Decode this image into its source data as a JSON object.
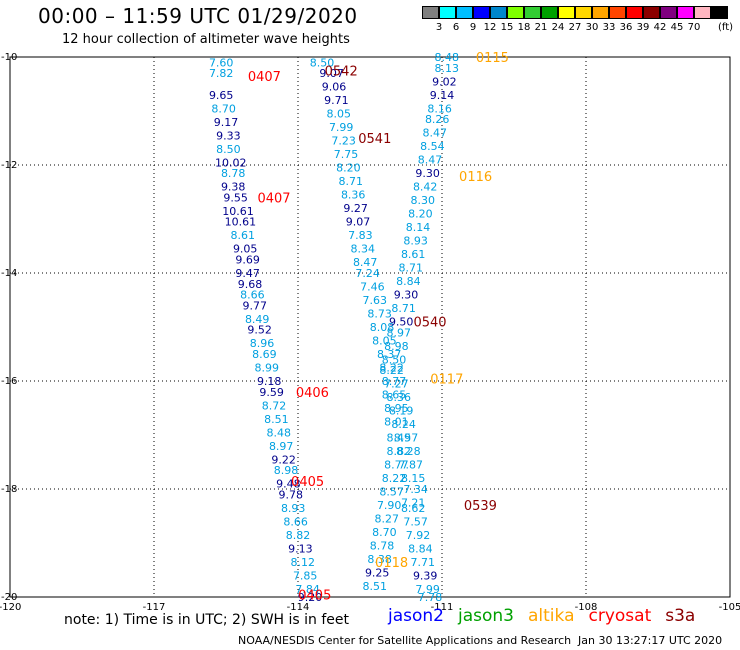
{
  "title": "00:00 – 11:59 UTC 01/29/2020",
  "subtitle": "12 hour collection of altimeter wave heights",
  "colorbar": {
    "colors": [
      "#7f7f7f",
      "#00ffff",
      "#00bfff",
      "#0000ff",
      "#0087cd",
      "#7fff00",
      "#32cd32",
      "#00a000",
      "#ffff00",
      "#ffd700",
      "#ffa500",
      "#ff4500",
      "#ff0000",
      "#8b0000",
      "#800080",
      "#ff00ff",
      "#ffb6c1",
      "#000000"
    ],
    "labels": [
      "3",
      "6",
      "9",
      "12",
      "15",
      "18",
      "21",
      "24",
      "27",
      "30",
      "33",
      "36",
      "39",
      "42",
      "45",
      "70"
    ],
    "unit": "(ft)"
  },
  "note": "note: 1) Time is in UTC; 2) SWH is in feet",
  "satellites": [
    {
      "name": "jason2",
      "color": "#0000ff"
    },
    {
      "name": "jason3",
      "color": "#00a000"
    },
    {
      "name": "altika",
      "color": "#ffa500"
    },
    {
      "name": "cryosat",
      "color": "#ff0000"
    },
    {
      "name": "s3a",
      "color": "#8b0000"
    }
  ],
  "credit": "NOAA/NESDIS Center for Satellite Applications and Research",
  "timestamp": "Jan 30 13:27:17 UTC 2020",
  "chart_data": {
    "type": "scatter",
    "xlim": [
      -120,
      -105
    ],
    "ylim": [
      -20,
      -10
    ],
    "xticks": [
      -120,
      -117,
      -114,
      -111,
      -108,
      -105
    ],
    "yticks": [
      -10,
      -12,
      -14,
      -16,
      -18,
      -20
    ],
    "xtick_labels": [
      "-120",
      "-117",
      "-114",
      "-111",
      "-108",
      "-105"
    ],
    "ytick_labels": [
      "-10",
      "-12",
      "-14",
      "-16",
      "-18",
      "-20"
    ],
    "grid": true,
    "point_colors": {
      "navy": "#00008b",
      "cyan": "#00a0e0"
    },
    "swh_values": [
      {
        "x": -115.6,
        "y": -10.1,
        "v": "7.60",
        "c": "cyan"
      },
      {
        "x": -115.6,
        "y": -10.3,
        "v": "7.82",
        "c": "cyan"
      },
      {
        "x": -115.6,
        "y": -10.7,
        "v": "9.65",
        "c": "navy"
      },
      {
        "x": -115.55,
        "y": -10.95,
        "v": "8.70",
        "c": "cyan"
      },
      {
        "x": -115.5,
        "y": -11.2,
        "v": "9.17",
        "c": "navy"
      },
      {
        "x": -115.45,
        "y": -11.45,
        "v": "9.33",
        "c": "navy"
      },
      {
        "x": -115.45,
        "y": -11.7,
        "v": "8.50",
        "c": "cyan"
      },
      {
        "x": -115.4,
        "y": -11.95,
        "v": "10.02",
        "c": "navy"
      },
      {
        "x": -115.35,
        "y": -12.15,
        "v": "8.78",
        "c": "cyan"
      },
      {
        "x": -115.35,
        "y": -12.4,
        "v": "9.38",
        "c": "navy"
      },
      {
        "x": -115.3,
        "y": -12.6,
        "v": "9.55",
        "c": "navy"
      },
      {
        "x": -115.25,
        "y": -12.85,
        "v": "10.61",
        "c": "navy"
      },
      {
        "x": -115.2,
        "y": -13.05,
        "v": "10.61",
        "c": "navy"
      },
      {
        "x": -115.15,
        "y": -13.3,
        "v": "8.61",
        "c": "cyan"
      },
      {
        "x": -115.1,
        "y": -13.55,
        "v": "9.05",
        "c": "navy"
      },
      {
        "x": -115.05,
        "y": -13.75,
        "v": "9.69",
        "c": "navy"
      },
      {
        "x": -115.05,
        "y": -14.0,
        "v": "9.47",
        "c": "navy"
      },
      {
        "x": -115.0,
        "y": -14.2,
        "v": "9.68",
        "c": "navy"
      },
      {
        "x": -114.95,
        "y": -14.4,
        "v": "8.66",
        "c": "cyan"
      },
      {
        "x": -114.9,
        "y": -14.6,
        "v": "9.77",
        "c": "navy"
      },
      {
        "x": -114.85,
        "y": -14.85,
        "v": "8.49",
        "c": "cyan"
      },
      {
        "x": -114.8,
        "y": -15.05,
        "v": "9.52",
        "c": "navy"
      },
      {
        "x": -114.75,
        "y": -15.3,
        "v": "8.96",
        "c": "cyan"
      },
      {
        "x": -114.7,
        "y": -15.5,
        "v": "8.69",
        "c": "cyan"
      },
      {
        "x": -114.65,
        "y": -15.75,
        "v": "8.99",
        "c": "cyan"
      },
      {
        "x": -114.6,
        "y": -16.0,
        "v": "9.18",
        "c": "navy"
      },
      {
        "x": -114.55,
        "y": -16.2,
        "v": "9.59",
        "c": "navy"
      },
      {
        "x": -114.5,
        "y": -16.45,
        "v": "8.72",
        "c": "cyan"
      },
      {
        "x": -114.45,
        "y": -16.7,
        "v": "8.51",
        "c": "cyan"
      },
      {
        "x": -114.4,
        "y": -16.95,
        "v": "8.48",
        "c": "cyan"
      },
      {
        "x": -114.35,
        "y": -17.2,
        "v": "8.97",
        "c": "cyan"
      },
      {
        "x": -114.3,
        "y": -17.45,
        "v": "9.22",
        "c": "navy"
      },
      {
        "x": -114.25,
        "y": -17.65,
        "v": "8.98",
        "c": "cyan"
      },
      {
        "x": -114.2,
        "y": -17.9,
        "v": "9.48",
        "c": "navy"
      },
      {
        "x": -114.15,
        "y": -18.1,
        "v": "9.78",
        "c": "navy"
      },
      {
        "x": -114.1,
        "y": -18.35,
        "v": "8.93",
        "c": "cyan"
      },
      {
        "x": -114.05,
        "y": -18.6,
        "v": "8.66",
        "c": "cyan"
      },
      {
        "x": -114.0,
        "y": -18.85,
        "v": "8.82",
        "c": "cyan"
      },
      {
        "x": -113.95,
        "y": -19.1,
        "v": "9.13",
        "c": "navy"
      },
      {
        "x": -113.9,
        "y": -19.35,
        "v": "8.12",
        "c": "cyan"
      },
      {
        "x": -113.85,
        "y": -19.6,
        "v": "7.85",
        "c": "cyan"
      },
      {
        "x": -113.8,
        "y": -19.85,
        "v": "7.84",
        "c": "cyan"
      },
      {
        "x": -113.75,
        "y": -20.0,
        "v": "9.20",
        "c": "navy"
      },
      {
        "x": -113.5,
        "y": -10.1,
        "v": "8.50",
        "c": "cyan"
      },
      {
        "x": -113.3,
        "y": -10.3,
        "v": "9.07",
        "c": "navy"
      },
      {
        "x": -113.25,
        "y": -10.55,
        "v": "9.06",
        "c": "navy"
      },
      {
        "x": -113.2,
        "y": -10.8,
        "v": "9.71",
        "c": "navy"
      },
      {
        "x": -113.15,
        "y": -11.05,
        "v": "8.05",
        "c": "cyan"
      },
      {
        "x": -113.1,
        "y": -11.3,
        "v": "7.99",
        "c": "cyan"
      },
      {
        "x": -113.05,
        "y": -11.55,
        "v": "7.23",
        "c": "cyan"
      },
      {
        "x": -113.0,
        "y": -11.8,
        "v": "7.75",
        "c": "cyan"
      },
      {
        "x": -112.95,
        "y": -12.05,
        "v": "8.20",
        "c": "cyan"
      },
      {
        "x": -112.9,
        "y": -12.3,
        "v": "8.71",
        "c": "cyan"
      },
      {
        "x": -112.85,
        "y": -12.55,
        "v": "8.36",
        "c": "cyan"
      },
      {
        "x": -112.8,
        "y": -12.8,
        "v": "9.27",
        "c": "navy"
      },
      {
        "x": -112.75,
        "y": -13.05,
        "v": "9.07",
        "c": "navy"
      },
      {
        "x": -112.7,
        "y": -13.3,
        "v": "7.83",
        "c": "cyan"
      },
      {
        "x": -112.65,
        "y": -13.55,
        "v": "8.34",
        "c": "cyan"
      },
      {
        "x": -112.6,
        "y": -13.8,
        "v": "8.47",
        "c": "cyan"
      },
      {
        "x": -112.55,
        "y": -14.0,
        "v": "7.24",
        "c": "cyan"
      },
      {
        "x": -112.45,
        "y": -14.25,
        "v": "7.46",
        "c": "cyan"
      },
      {
        "x": -112.4,
        "y": -14.5,
        "v": "7.63",
        "c": "cyan"
      },
      {
        "x": -112.3,
        "y": -14.75,
        "v": "8.73",
        "c": "cyan"
      },
      {
        "x": -112.25,
        "y": -15.0,
        "v": "8.08",
        "c": "cyan"
      },
      {
        "x": -112.2,
        "y": -15.25,
        "v": "8.05",
        "c": "cyan"
      },
      {
        "x": -112.1,
        "y": -15.5,
        "v": "8.37",
        "c": "cyan"
      },
      {
        "x": -112.05,
        "y": -15.75,
        "v": "8.22",
        "c": "cyan"
      },
      {
        "x": -112.0,
        "y": -16.0,
        "v": "8.77",
        "c": "cyan"
      },
      {
        "x": -112.0,
        "y": -16.25,
        "v": "8.65",
        "c": "cyan"
      },
      {
        "x": -111.95,
        "y": -16.5,
        "v": "8.95",
        "c": "cyan"
      },
      {
        "x": -111.95,
        "y": -16.75,
        "v": "8.01",
        "c": "cyan"
      },
      {
        "x": -111.9,
        "y": -17.05,
        "v": "8.49",
        "c": "cyan"
      },
      {
        "x": -111.9,
        "y": -17.3,
        "v": "8.82",
        "c": "cyan"
      },
      {
        "x": -111.95,
        "y": -17.55,
        "v": "8.77",
        "c": "cyan"
      },
      {
        "x": -112.0,
        "y": -17.8,
        "v": "8.22",
        "c": "cyan"
      },
      {
        "x": -112.05,
        "y": -18.05,
        "v": "8.57",
        "c": "cyan"
      },
      {
        "x": -112.1,
        "y": -18.3,
        "v": "7.90",
        "c": "cyan"
      },
      {
        "x": -112.15,
        "y": -18.55,
        "v": "8.27",
        "c": "cyan"
      },
      {
        "x": -112.2,
        "y": -18.8,
        "v": "8.70",
        "c": "cyan"
      },
      {
        "x": -112.25,
        "y": -19.05,
        "v": "8.78",
        "c": "cyan"
      },
      {
        "x": -112.3,
        "y": -19.3,
        "v": "8.38",
        "c": "cyan"
      },
      {
        "x": -112.35,
        "y": -19.55,
        "v": "9.25",
        "c": "navy"
      },
      {
        "x": -112.4,
        "y": -19.8,
        "v": "8.51",
        "c": "cyan"
      },
      {
        "x": -110.9,
        "y": -10.0,
        "v": "8.48",
        "c": "cyan"
      },
      {
        "x": -110.9,
        "y": -10.2,
        "v": "8.13",
        "c": "cyan"
      },
      {
        "x": -110.95,
        "y": -10.45,
        "v": "9.02",
        "c": "navy"
      },
      {
        "x": -111.0,
        "y": -10.7,
        "v": "9.14",
        "c": "navy"
      },
      {
        "x": -111.05,
        "y": -10.95,
        "v": "8.16",
        "c": "cyan"
      },
      {
        "x": -111.1,
        "y": -11.15,
        "v": "8.26",
        "c": "cyan"
      },
      {
        "x": -111.15,
        "y": -11.4,
        "v": "8.47",
        "c": "cyan"
      },
      {
        "x": -111.2,
        "y": -11.65,
        "v": "8.54",
        "c": "cyan"
      },
      {
        "x": -111.25,
        "y": -11.9,
        "v": "8.47",
        "c": "cyan"
      },
      {
        "x": -111.3,
        "y": -12.15,
        "v": "9.30",
        "c": "navy"
      },
      {
        "x": -111.35,
        "y": -12.4,
        "v": "8.42",
        "c": "cyan"
      },
      {
        "x": -111.4,
        "y": -12.65,
        "v": "8.30",
        "c": "cyan"
      },
      {
        "x": -111.45,
        "y": -12.9,
        "v": "8.20",
        "c": "cyan"
      },
      {
        "x": -111.5,
        "y": -13.15,
        "v": "8.14",
        "c": "cyan"
      },
      {
        "x": -111.55,
        "y": -13.4,
        "v": "8.93",
        "c": "cyan"
      },
      {
        "x": -111.6,
        "y": -13.65,
        "v": "8.61",
        "c": "cyan"
      },
      {
        "x": -111.65,
        "y": -13.9,
        "v": "8.71",
        "c": "cyan"
      },
      {
        "x": -111.7,
        "y": -14.15,
        "v": "8.84",
        "c": "cyan"
      },
      {
        "x": -111.75,
        "y": -14.4,
        "v": "9.30",
        "c": "navy"
      },
      {
        "x": -111.8,
        "y": -14.65,
        "v": "8.71",
        "c": "cyan"
      },
      {
        "x": -111.85,
        "y": -14.9,
        "v": "9.50",
        "c": "navy"
      },
      {
        "x": -111.9,
        "y": -15.1,
        "v": "8.97",
        "c": "cyan"
      },
      {
        "x": -111.95,
        "y": -15.35,
        "v": "8.98",
        "c": "cyan"
      },
      {
        "x": -112.0,
        "y": -15.6,
        "v": "8.50",
        "c": "cyan"
      },
      {
        "x": -112.05,
        "y": -15.8,
        "v": "8.22",
        "c": "cyan"
      },
      {
        "x": -111.95,
        "y": -16.05,
        "v": "7.27",
        "c": "cyan"
      },
      {
        "x": -111.9,
        "y": -16.3,
        "v": "8.36",
        "c": "cyan"
      },
      {
        "x": -111.85,
        "y": -16.55,
        "v": "8.19",
        "c": "cyan"
      },
      {
        "x": -111.8,
        "y": -16.8,
        "v": "8.24",
        "c": "cyan"
      },
      {
        "x": -111.75,
        "y": -17.05,
        "v": "8.57",
        "c": "cyan"
      },
      {
        "x": -111.7,
        "y": -17.3,
        "v": "8.28",
        "c": "cyan"
      },
      {
        "x": -111.65,
        "y": -17.55,
        "v": "7.87",
        "c": "cyan"
      },
      {
        "x": -111.6,
        "y": -17.8,
        "v": "8.15",
        "c": "cyan"
      },
      {
        "x": -111.55,
        "y": -18.0,
        "v": "7.34",
        "c": "cyan"
      },
      {
        "x": -111.6,
        "y": -18.25,
        "v": "7.21",
        "c": "cyan"
      },
      {
        "x": -111.6,
        "y": -18.35,
        "v": "8.62",
        "c": "cyan"
      },
      {
        "x": -111.55,
        "y": -18.6,
        "v": "7.57",
        "c": "cyan"
      },
      {
        "x": -111.5,
        "y": -18.85,
        "v": "7.92",
        "c": "cyan"
      },
      {
        "x": -111.45,
        "y": -19.1,
        "v": "8.84",
        "c": "cyan"
      },
      {
        "x": -111.4,
        "y": -19.35,
        "v": "7.71",
        "c": "cyan"
      },
      {
        "x": -111.35,
        "y": -19.6,
        "v": "9.39",
        "c": "navy"
      },
      {
        "x": -111.3,
        "y": -19.85,
        "v": "7.99",
        "c": "cyan"
      },
      {
        "x": -111.25,
        "y": -20.0,
        "v": "7.78",
        "c": "cyan"
      }
    ],
    "pass_labels": [
      {
        "x": -114.7,
        "y": -10.35,
        "v": "0407",
        "c": "#ff0000"
      },
      {
        "x": -113.1,
        "y": -10.25,
        "v": "0542",
        "c": "#8b0000"
      },
      {
        "x": -112.4,
        "y": -11.5,
        "v": "0541",
        "c": "#8b0000"
      },
      {
        "x": -114.5,
        "y": -12.6,
        "v": "0407",
        "c": "#ff0000"
      },
      {
        "x": -110.9,
        "y": -15.95,
        "v": "0117",
        "c": "#ffa500"
      },
      {
        "x": -111.25,
        "y": -14.9,
        "v": "0540",
        "c": "#8b0000"
      },
      {
        "x": -113.7,
        "y": -16.2,
        "v": "0406",
        "c": "#ff0000"
      },
      {
        "x": -113.8,
        "y": -17.85,
        "v": "0405",
        "c": "#ff0000"
      },
      {
        "x": -110.2,
        "y": -18.3,
        "v": "0539",
        "c": "#8b0000"
      },
      {
        "x": -112.05,
        "y": -19.35,
        "v": "0118",
        "c": "#ffa500"
      },
      {
        "x": -113.65,
        "y": -19.95,
        "v": "0405",
        "c": "#ff0000"
      },
      {
        "x": -109.95,
        "y": -10.0,
        "v": "0115",
        "c": "#ffa500"
      },
      {
        "x": -110.3,
        "y": -12.2,
        "v": "0116",
        "c": "#ffa500"
      }
    ]
  }
}
